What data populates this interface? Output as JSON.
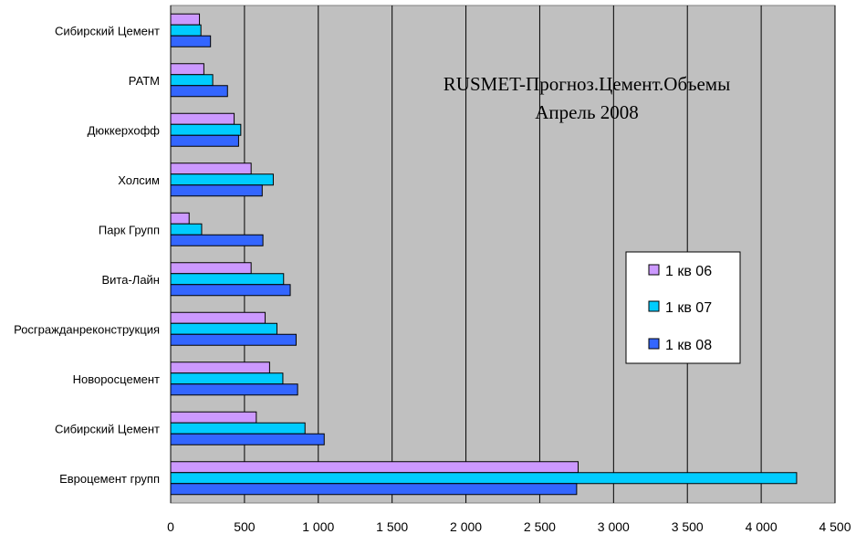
{
  "chart_data": {
    "type": "bar",
    "orientation": "horizontal",
    "title": "RUSMET-Прогноз.Цемент.Объемы",
    "subtitle": "Апрель 2008",
    "categories": [
      "Евроцемент групп",
      "Сибирский Цемент",
      "Новоросцемент",
      "Росгражданреконструкция",
      "Вита-Лайн",
      "Парк Групп",
      "Холсим",
      "Дюккерхофф",
      "РАТМ",
      "Сибирский Цемент"
    ],
    "series": [
      {
        "name": "1 кв 06",
        "color": "#cc99ff",
        "values": [
          2760,
          580,
          670,
          640,
          545,
          125,
          545,
          430,
          225,
          195
        ]
      },
      {
        "name": "1 кв 07",
        "color": "#00ccff",
        "values": [
          4240,
          910,
          760,
          720,
          765,
          210,
          695,
          475,
          285,
          205
        ]
      },
      {
        "name": "1 кв 08",
        "color": "#3366ff",
        "values": [
          2750,
          1040,
          860,
          850,
          810,
          625,
          620,
          460,
          385,
          270
        ]
      }
    ],
    "xlim": [
      0,
      4500
    ],
    "xticks": [
      "0",
      "500",
      "1 000",
      "1 500",
      "2 000",
      "2 500",
      "3 000",
      "3 500",
      "4 000",
      "4 500"
    ],
    "xtick_values": [
      0,
      500,
      1000,
      1500,
      2000,
      2500,
      3000,
      3500,
      4000,
      4500
    ],
    "grid": true,
    "legend_position": "right",
    "plot_background": "#c0c0c0"
  }
}
